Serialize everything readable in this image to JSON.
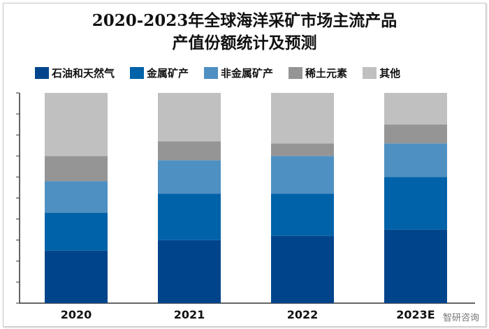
{
  "chart_data": {
    "type": "bar",
    "stacked": true,
    "title_line1": "2020-2023年全球海洋采矿市场主流产品",
    "title_line2": "产值份额统计及预测",
    "categories": [
      "2020",
      "2021",
      "2022",
      "2023E"
    ],
    "ylim": [
      0,
      100
    ],
    "unit": "%",
    "legend_position": "top",
    "series": [
      {
        "name": "石油和天然气",
        "color": "#00458b",
        "values": [
          25,
          30,
          32,
          35
        ]
      },
      {
        "name": "金属矿产",
        "color": "#0062a8",
        "values": [
          18,
          22,
          20,
          25
        ]
      },
      {
        "name": "非金属矿产",
        "color": "#4f90c2",
        "values": [
          15,
          16,
          18,
          16
        ]
      },
      {
        "name": "稀土元素",
        "color": "#959595",
        "values": [
          12,
          9,
          6,
          9
        ]
      },
      {
        "name": "其他",
        "color": "#c0c0c0",
        "values": [
          30,
          23,
          24,
          15
        ]
      }
    ]
  },
  "watermark": "智研咨询"
}
